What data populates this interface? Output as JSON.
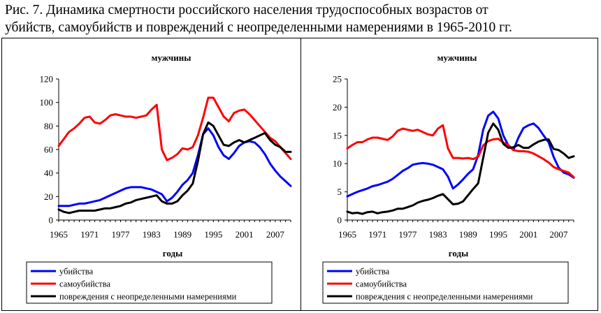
{
  "figure": {
    "title_line1": "Рис. 7. Динамика смертности российского населения трудоспособных возрастов от",
    "title_line2": "убийств, самоубийств и повреждений с неопределенными намерениями в 1965-2010 гг."
  },
  "colors": {
    "murders": "#0000ff",
    "suicides": "#ff0000",
    "undetermined": "#000000"
  },
  "chart_data": [
    {
      "type": "line",
      "title": "мужчины",
      "xlabel": "годы",
      "ylabel": "",
      "xlim": [
        1965,
        2010
      ],
      "ylim": [
        0,
        120
      ],
      "xticks": [
        "1965",
        "1971",
        "1977",
        "1983",
        "1989",
        "1995",
        "2001",
        "2007"
      ],
      "yticks": [
        "0",
        "20",
        "40",
        "60",
        "80",
        "100",
        "120"
      ],
      "legend_position": "bottom",
      "grid": false,
      "x": [
        1965,
        1966,
        1967,
        1968,
        1969,
        1970,
        1971,
        1972,
        1973,
        1974,
        1975,
        1976,
        1977,
        1978,
        1979,
        1980,
        1981,
        1982,
        1983,
        1984,
        1985,
        1986,
        1987,
        1988,
        1989,
        1990,
        1991,
        1992,
        1993,
        1994,
        1995,
        1996,
        1997,
        1998,
        1999,
        2000,
        2001,
        2002,
        2003,
        2004,
        2005,
        2006,
        2007,
        2008,
        2009,
        2010
      ],
      "series": [
        {
          "name": "убийства",
          "color_key": "murders",
          "values": [
            12,
            12,
            12,
            13,
            14,
            14,
            15,
            16,
            17,
            19,
            21,
            23,
            25,
            27,
            28,
            28,
            28,
            27,
            26,
            24,
            22,
            16,
            19,
            24,
            30,
            34,
            40,
            55,
            73,
            78,
            72,
            62,
            55,
            52,
            57,
            63,
            66,
            67,
            66,
            62,
            56,
            48,
            42,
            37,
            33,
            29
          ]
        },
        {
          "name": "самоубийства",
          "color_key": "suicides",
          "values": [
            63,
            69,
            75,
            78,
            82,
            87,
            88,
            83,
            82,
            85,
            89,
            90,
            89,
            88,
            88,
            87,
            88,
            89,
            94,
            98,
            60,
            51,
            53,
            56,
            61,
            60,
            62,
            72,
            87,
            104,
            104,
            96,
            88,
            84,
            91,
            93,
            94,
            90,
            85,
            80,
            75,
            70,
            67,
            62,
            57,
            52
          ]
        },
        {
          "name": "повреждения с неопределенными намерениями",
          "color_key": "undetermined",
          "values": [
            9,
            7,
            6,
            7,
            8,
            8,
            8,
            8,
            9,
            10,
            10,
            11,
            12,
            14,
            15,
            17,
            18,
            19,
            20,
            21,
            16,
            14,
            14,
            16,
            21,
            25,
            31,
            50,
            73,
            83,
            80,
            72,
            64,
            63,
            66,
            68,
            66,
            68,
            70,
            72,
            74,
            68,
            64,
            62,
            58,
            58
          ]
        }
      ]
    },
    {
      "type": "line",
      "title": "мужчины",
      "xlabel": "годы",
      "ylabel": "",
      "xlim": [
        1965,
        2010
      ],
      "ylim": [
        0,
        25
      ],
      "xticks": [
        "1965",
        "1971",
        "1977",
        "1983",
        "1989",
        "1995",
        "2001",
        "2007"
      ],
      "yticks": [
        "0",
        "5",
        "10",
        "15",
        "20",
        "25"
      ],
      "legend_position": "bottom",
      "grid": false,
      "x": [
        1965,
        1966,
        1967,
        1968,
        1969,
        1970,
        1971,
        1972,
        1973,
        1974,
        1975,
        1976,
        1977,
        1978,
        1979,
        1980,
        1981,
        1982,
        1983,
        1984,
        1985,
        1986,
        1987,
        1988,
        1989,
        1990,
        1991,
        1992,
        1993,
        1994,
        1995,
        1996,
        1997,
        1998,
        1999,
        2000,
        2001,
        2002,
        2003,
        2004,
        2005,
        2006,
        2007,
        2008,
        2009,
        2010
      ],
      "series": [
        {
          "name": "убийства",
          "color_key": "murders",
          "values": [
            4.2,
            4.6,
            5.0,
            5.3,
            5.6,
            6.0,
            6.2,
            6.5,
            6.8,
            7.3,
            8.0,
            8.7,
            9.2,
            9.8,
            10.0,
            10.1,
            10.0,
            9.8,
            9.4,
            9.0,
            7.7,
            5.6,
            6.3,
            7.2,
            8.2,
            9.0,
            11.5,
            16.0,
            18.5,
            19.2,
            18.0,
            15.0,
            13.2,
            12.4,
            14.6,
            16.3,
            16.8,
            17.1,
            16.3,
            15.0,
            13.8,
            11.2,
            9.3,
            8.4,
            8.1,
            7.5
          ]
        },
        {
          "name": "самоубийства",
          "color_key": "suicides",
          "values": [
            12.7,
            13.3,
            13.8,
            13.8,
            14.3,
            14.6,
            14.6,
            14.4,
            14.2,
            14.8,
            15.8,
            16.2,
            16.0,
            15.8,
            16.0,
            15.6,
            15.2,
            15.0,
            16.2,
            16.8,
            12.7,
            11.0,
            11.0,
            10.9,
            11.0,
            10.8,
            11.2,
            13.2,
            14.0,
            14.3,
            14.4,
            13.7,
            13.3,
            12.4,
            12.2,
            12.2,
            12.1,
            11.8,
            11.3,
            10.8,
            10.2,
            9.4,
            9.0,
            8.7,
            8.4,
            7.6
          ]
        },
        {
          "name": "повреждения с неопределенными намерениями",
          "color_key": "undetermined",
          "values": [
            1.5,
            1.2,
            1.3,
            1.1,
            1.4,
            1.5,
            1.2,
            1.4,
            1.5,
            1.7,
            2.0,
            2.0,
            2.3,
            2.6,
            3.1,
            3.4,
            3.6,
            3.9,
            4.3,
            4.6,
            3.7,
            2.8,
            2.9,
            3.3,
            4.4,
            5.5,
            6.5,
            11.0,
            15.5,
            17.1,
            16.0,
            13.5,
            12.8,
            12.9,
            13.3,
            12.8,
            12.8,
            13.4,
            13.9,
            14.2,
            14.3,
            12.6,
            12.4,
            11.8,
            11.0,
            11.3
          ]
        }
      ]
    }
  ]
}
